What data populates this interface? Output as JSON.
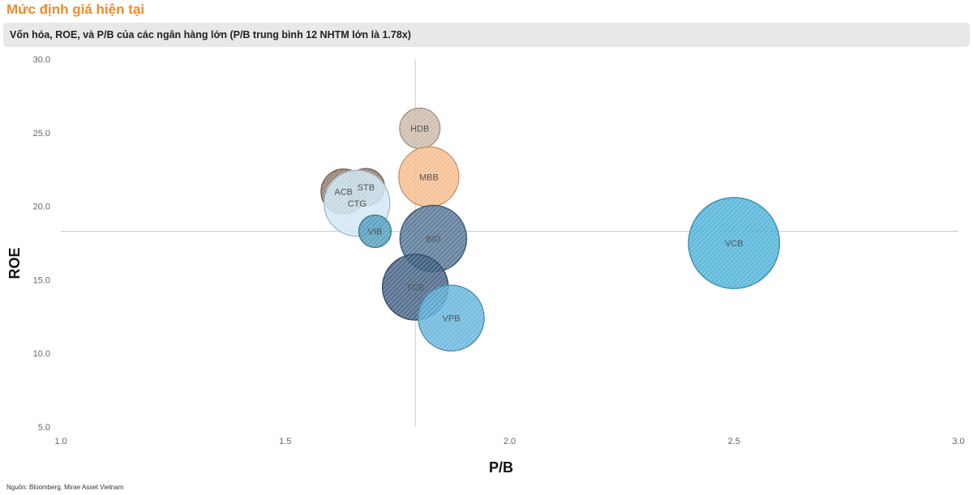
{
  "header": {
    "title": "Mức định giá hiện tại",
    "subtitle": "Vốn hóa, ROE, và P/B của các ngân hàng lớn (P/B trung bình 12 NHTM lớn là 1.78x)"
  },
  "footer": {
    "source": "Nguồn: Bloomberg, Mirae Asset Vietnam"
  },
  "chart_data": {
    "type": "scatter",
    "subtype": "bubble",
    "xlabel": "P/B",
    "ylabel": "ROE",
    "xlim": [
      1.0,
      3.0
    ],
    "ylim": [
      5.0,
      30.0
    ],
    "xticks": [
      "1.0",
      "1.5",
      "2.0",
      "2.5",
      "3.0"
    ],
    "yticks": [
      "30.0",
      "25.0",
      "20.0",
      "15.0",
      "10.0",
      "5.0"
    ],
    "reference_lines": {
      "x": 1.79,
      "y": 18.3
    },
    "grid": false,
    "series": [
      {
        "label": "HDB",
        "x": 1.8,
        "y": 25.3,
        "size": 0.45,
        "color": "#c9b6a6"
      },
      {
        "label": "MBB",
        "x": 1.82,
        "y": 22.0,
        "size": 1.0,
        "color": "#f6b887"
      },
      {
        "label": "ACB",
        "x": 1.63,
        "y": 21.0,
        "size": 0.56,
        "color": "#8c7563"
      },
      {
        "label": "STB",
        "x": 1.68,
        "y": 21.3,
        "size": 0.38,
        "color": "#8c7563"
      },
      {
        "label": "CTG",
        "x": 1.66,
        "y": 20.2,
        "size": 1.2,
        "color": "#cfe6f5"
      },
      {
        "label": "VIB",
        "x": 1.7,
        "y": 18.3,
        "size": 0.29,
        "color": "#4b98b8"
      },
      {
        "label": "BID",
        "x": 1.83,
        "y": 17.8,
        "size": 1.23,
        "color": "#4e6e91"
      },
      {
        "label": "TCB",
        "x": 1.79,
        "y": 14.5,
        "size": 1.2,
        "color": "#3c5b7f"
      },
      {
        "label": "VPB",
        "x": 1.87,
        "y": 12.4,
        "size": 1.2,
        "color": "#5fb1da"
      },
      {
        "label": "VCB",
        "x": 2.5,
        "y": 17.5,
        "size": 2.3,
        "color": "#46aed6"
      }
    ]
  }
}
